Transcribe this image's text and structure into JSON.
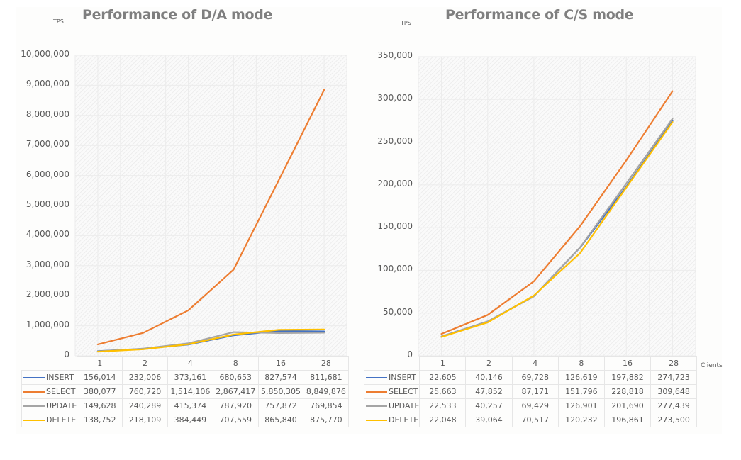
{
  "chart_data": [
    {
      "type": "line",
      "title": "Performance of D/A mode",
      "ylabel": "TPS",
      "xlabel": "",
      "categories": [
        "1",
        "2",
        "4",
        "8",
        "16",
        "28"
      ],
      "ylim": [
        0,
        10000000
      ],
      "yticks": [
        "0",
        "1,000,000",
        "2,000,000",
        "3,000,000",
        "4,000,000",
        "5,000,000",
        "6,000,000",
        "7,000,000",
        "8,000,000",
        "9,000,000",
        "10,000,000"
      ],
      "ytick_values": [
        0,
        1000000,
        2000000,
        3000000,
        4000000,
        5000000,
        6000000,
        7000000,
        8000000,
        9000000,
        10000000
      ],
      "grid": true,
      "legend": "data-table-bottom",
      "series": [
        {
          "name": "INSERT",
          "color": "#4472c4",
          "values": [
            156014,
            232006,
            373161,
            680653,
            827574,
            811681
          ],
          "labels": [
            "156,014",
            "232,006",
            "373,161",
            "680,653",
            "827,574",
            "811,681"
          ]
        },
        {
          "name": "SELECT",
          "color": "#ed7d31",
          "values": [
            380077,
            760720,
            1514106,
            2867417,
            5850305,
            8849876
          ],
          "labels": [
            "380,077",
            "760,720",
            "1,514,106",
            "2,867,417",
            "5,850,305",
            "8,849,876"
          ]
        },
        {
          "name": "UPDATE",
          "color": "#a5a5a5",
          "values": [
            149628,
            240289,
            415374,
            787920,
            757872,
            769854
          ],
          "labels": [
            "149,628",
            "240,289",
            "415,374",
            "787,920",
            "757,872",
            "769,854"
          ]
        },
        {
          "name": "DELETE",
          "color": "#ffc000",
          "values": [
            138752,
            218109,
            384449,
            707559,
            865840,
            875770
          ],
          "labels": [
            "138,752",
            "218,109",
            "384,449",
            "707,559",
            "865,840",
            "875,770"
          ]
        }
      ]
    },
    {
      "type": "line",
      "title": "Performance of C/S mode",
      "ylabel": "TPS",
      "xlabel": "Clients",
      "categories": [
        "1",
        "2",
        "4",
        "8",
        "16",
        "28"
      ],
      "ylim": [
        0,
        350000
      ],
      "yticks": [
        "0",
        "50,000",
        "100,000",
        "150,000",
        "200,000",
        "250,000",
        "300,000",
        "350,000"
      ],
      "ytick_values": [
        0,
        50000,
        100000,
        150000,
        200000,
        250000,
        300000,
        350000
      ],
      "grid": true,
      "legend": "data-table-bottom",
      "series": [
        {
          "name": "INSERT",
          "color": "#4472c4",
          "values": [
            22605,
            40146,
            69728,
            126619,
            197882,
            274723
          ],
          "labels": [
            "22,605",
            "40,146",
            "69,728",
            "126,619",
            "197,882",
            "274,723"
          ]
        },
        {
          "name": "SELECT",
          "color": "#ed7d31",
          "values": [
            25663,
            47852,
            87171,
            151796,
            228818,
            309648
          ],
          "labels": [
            "25,663",
            "47,852",
            "87,171",
            "151,796",
            "228,818",
            "309,648"
          ]
        },
        {
          "name": "UPDATE",
          "color": "#a5a5a5",
          "values": [
            22533,
            40257,
            69429,
            126901,
            201690,
            277439
          ],
          "labels": [
            "22,533",
            "40,257",
            "69,429",
            "126,901",
            "201,690",
            "277,439"
          ]
        },
        {
          "name": "DELETE",
          "color": "#ffc000",
          "values": [
            22048,
            39064,
            70517,
            120232,
            196861,
            273500
          ],
          "labels": [
            "22,048",
            "39,064",
            "70,517",
            "120,232",
            "196,861",
            "273,500"
          ]
        }
      ]
    }
  ]
}
